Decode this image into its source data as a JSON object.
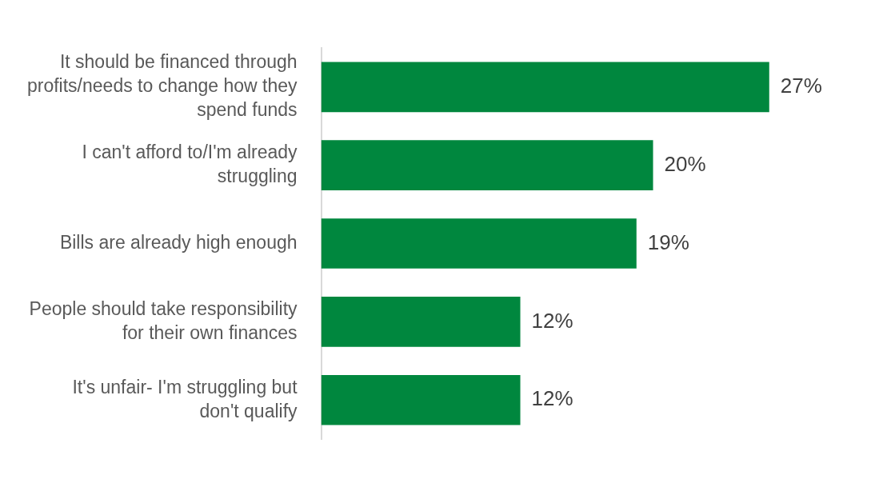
{
  "chart_data": {
    "type": "bar",
    "orientation": "horizontal",
    "categories": [
      "It should be financed through profits/needs to change how they spend funds",
      "I can't afford to/I'm already struggling",
      "Bills are already high enough",
      "People should take responsibility for their own finances",
      "It's unfair- I'm struggling but don't qualify"
    ],
    "values": [
      27,
      20,
      19,
      12,
      12
    ],
    "value_labels": [
      "27%",
      "20%",
      "19%",
      "12%",
      "12%"
    ],
    "color": "#00873e",
    "legend": false,
    "tick_labels": "y"
  }
}
